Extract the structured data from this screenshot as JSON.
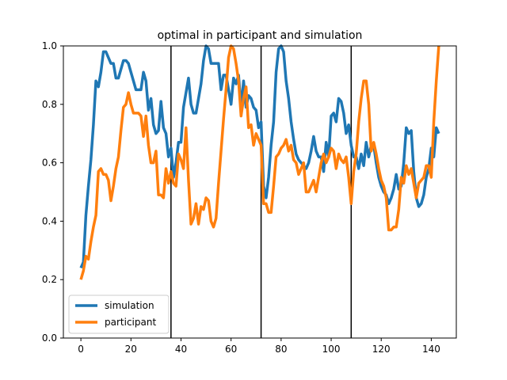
{
  "chart_data": {
    "type": "line",
    "title": "optimal in participant and simulation",
    "xlabel": "",
    "ylabel": "",
    "xlim": [
      -7,
      150
    ],
    "ylim": [
      0.0,
      1.0
    ],
    "xticks": [
      0,
      20,
      40,
      60,
      80,
      100,
      120,
      140
    ],
    "yticks": [
      0.0,
      0.2,
      0.4,
      0.6,
      0.8,
      1.0
    ],
    "xtick_labels": [
      "0",
      "20",
      "40",
      "60",
      "80",
      "100",
      "120",
      "140"
    ],
    "ytick_labels": [
      "0.0",
      "0.2",
      "0.4",
      "0.6",
      "0.8",
      "1.0"
    ],
    "vlines": [
      36,
      72,
      108
    ],
    "grid": false,
    "legend": {
      "placement": "lower-left"
    },
    "series": [
      {
        "name": "simulation",
        "color": "#1f77b4",
        "points": [
          [
            0,
            0.24
          ],
          [
            1,
            0.26
          ],
          [
            2,
            0.42
          ],
          [
            3,
            0.52
          ],
          [
            4,
            0.61
          ],
          [
            5,
            0.73
          ],
          [
            6,
            0.88
          ],
          [
            7,
            0.86
          ],
          [
            8,
            0.91
          ],
          [
            9,
            0.98
          ],
          [
            10,
            0.98
          ],
          [
            11,
            0.96
          ],
          [
            12,
            0.94
          ],
          [
            13,
            0.94
          ],
          [
            14,
            0.89
          ],
          [
            15,
            0.89
          ],
          [
            16,
            0.92
          ],
          [
            17,
            0.95
          ],
          [
            18,
            0.95
          ],
          [
            19,
            0.94
          ],
          [
            20,
            0.91
          ],
          [
            21,
            0.88
          ],
          [
            22,
            0.85
          ],
          [
            23,
            0.85
          ],
          [
            24,
            0.85
          ],
          [
            25,
            0.91
          ],
          [
            26,
            0.88
          ],
          [
            27,
            0.78
          ],
          [
            28,
            0.82
          ],
          [
            29,
            0.73
          ],
          [
            30,
            0.7
          ],
          [
            31,
            0.71
          ],
          [
            32,
            0.81
          ],
          [
            33,
            0.72
          ],
          [
            34,
            0.7
          ],
          [
            35,
            0.62
          ],
          [
            36,
            0.65
          ],
          [
            37,
            0.55
          ],
          [
            38,
            0.6
          ],
          [
            39,
            0.67
          ],
          [
            40,
            0.67
          ],
          [
            41,
            0.79
          ],
          [
            42,
            0.84
          ],
          [
            43,
            0.89
          ],
          [
            44,
            0.8
          ],
          [
            45,
            0.77
          ],
          [
            46,
            0.77
          ],
          [
            47,
            0.82
          ],
          [
            48,
            0.87
          ],
          [
            49,
            0.95
          ],
          [
            50,
            1.0
          ],
          [
            51,
            0.99
          ],
          [
            52,
            0.94
          ],
          [
            53,
            0.94
          ],
          [
            54,
            0.94
          ],
          [
            55,
            0.94
          ],
          [
            56,
            0.85
          ],
          [
            57,
            0.9
          ],
          [
            58,
            0.9
          ],
          [
            59,
            0.85
          ],
          [
            60,
            0.8
          ],
          [
            61,
            0.89
          ],
          [
            62,
            0.87
          ],
          [
            63,
            0.9
          ],
          [
            64,
            0.79
          ],
          [
            65,
            0.88
          ],
          [
            66,
            0.79
          ],
          [
            67,
            0.83
          ],
          [
            68,
            0.82
          ],
          [
            69,
            0.79
          ],
          [
            70,
            0.78
          ],
          [
            71,
            0.72
          ],
          [
            72,
            0.74
          ],
          [
            73,
            0.52
          ],
          [
            74,
            0.48
          ],
          [
            75,
            0.55
          ],
          [
            76,
            0.66
          ],
          [
            77,
            0.74
          ],
          [
            78,
            0.91
          ],
          [
            79,
            0.99
          ],
          [
            80,
            1.0
          ],
          [
            81,
            0.98
          ],
          [
            82,
            0.88
          ],
          [
            83,
            0.82
          ],
          [
            84,
            0.74
          ],
          [
            85,
            0.68
          ],
          [
            86,
            0.63
          ],
          [
            87,
            0.61
          ],
          [
            88,
            0.6
          ],
          [
            89,
            0.59
          ],
          [
            90,
            0.58
          ],
          [
            91,
            0.6
          ],
          [
            92,
            0.64
          ],
          [
            93,
            0.69
          ],
          [
            94,
            0.64
          ],
          [
            95,
            0.62
          ],
          [
            96,
            0.62
          ],
          [
            97,
            0.57
          ],
          [
            98,
            0.67
          ],
          [
            99,
            0.62
          ],
          [
            100,
            0.76
          ],
          [
            101,
            0.77
          ],
          [
            102,
            0.74
          ],
          [
            103,
            0.82
          ],
          [
            104,
            0.81
          ],
          [
            105,
            0.77
          ],
          [
            106,
            0.7
          ],
          [
            107,
            0.73
          ],
          [
            108,
            0.66
          ],
          [
            109,
            0.62
          ],
          [
            110,
            0.62
          ],
          [
            111,
            0.58
          ],
          [
            112,
            0.63
          ],
          [
            113,
            0.59
          ],
          [
            114,
            0.67
          ],
          [
            115,
            0.62
          ],
          [
            116,
            0.66
          ],
          [
            117,
            0.66
          ],
          [
            118,
            0.6
          ],
          [
            119,
            0.55
          ],
          [
            120,
            0.52
          ],
          [
            121,
            0.5
          ],
          [
            122,
            0.49
          ],
          [
            123,
            0.46
          ],
          [
            124,
            0.48
          ],
          [
            125,
            0.51
          ],
          [
            126,
            0.56
          ],
          [
            127,
            0.51
          ],
          [
            128,
            0.52
          ],
          [
            129,
            0.6
          ],
          [
            130,
            0.72
          ],
          [
            131,
            0.7
          ],
          [
            132,
            0.71
          ],
          [
            133,
            0.57
          ],
          [
            134,
            0.48
          ],
          [
            135,
            0.45
          ],
          [
            136,
            0.46
          ],
          [
            137,
            0.49
          ],
          [
            138,
            0.55
          ],
          [
            139,
            0.58
          ],
          [
            140,
            0.65
          ],
          [
            141,
            0.62
          ],
          [
            142,
            0.72
          ],
          [
            143,
            0.7
          ]
        ]
      },
      {
        "name": "participant",
        "color": "#ff7f0e",
        "points": [
          [
            0,
            0.2
          ],
          [
            1,
            0.23
          ],
          [
            2,
            0.28
          ],
          [
            3,
            0.27
          ],
          [
            4,
            0.33
          ],
          [
            5,
            0.38
          ],
          [
            6,
            0.42
          ],
          [
            7,
            0.57
          ],
          [
            8,
            0.58
          ],
          [
            9,
            0.56
          ],
          [
            10,
            0.56
          ],
          [
            11,
            0.54
          ],
          [
            12,
            0.47
          ],
          [
            13,
            0.52
          ],
          [
            14,
            0.58
          ],
          [
            15,
            0.62
          ],
          [
            16,
            0.71
          ],
          [
            17,
            0.79
          ],
          [
            18,
            0.8
          ],
          [
            19,
            0.84
          ],
          [
            20,
            0.8
          ],
          [
            21,
            0.77
          ],
          [
            22,
            0.77
          ],
          [
            23,
            0.77
          ],
          [
            24,
            0.76
          ],
          [
            25,
            0.69
          ],
          [
            26,
            0.76
          ],
          [
            27,
            0.66
          ],
          [
            28,
            0.6
          ],
          [
            29,
            0.6
          ],
          [
            30,
            0.64
          ],
          [
            31,
            0.49
          ],
          [
            32,
            0.49
          ],
          [
            33,
            0.48
          ],
          [
            34,
            0.58
          ],
          [
            35,
            0.53
          ],
          [
            36,
            0.57
          ],
          [
            37,
            0.53
          ],
          [
            38,
            0.52
          ],
          [
            39,
            0.63
          ],
          [
            40,
            0.61
          ],
          [
            41,
            0.58
          ],
          [
            42,
            0.72
          ],
          [
            43,
            0.54
          ],
          [
            44,
            0.39
          ],
          [
            45,
            0.41
          ],
          [
            46,
            0.46
          ],
          [
            47,
            0.39
          ],
          [
            48,
            0.45
          ],
          [
            49,
            0.44
          ],
          [
            50,
            0.48
          ],
          [
            51,
            0.47
          ],
          [
            52,
            0.4
          ],
          [
            53,
            0.38
          ],
          [
            54,
            0.41
          ],
          [
            55,
            0.53
          ],
          [
            56,
            0.64
          ],
          [
            57,
            0.75
          ],
          [
            58,
            0.85
          ],
          [
            59,
            0.96
          ],
          [
            60,
            1.0
          ],
          [
            61,
            0.99
          ],
          [
            62,
            0.94
          ],
          [
            63,
            0.88
          ],
          [
            64,
            0.76
          ],
          [
            65,
            0.82
          ],
          [
            66,
            0.86
          ],
          [
            67,
            0.72
          ],
          [
            68,
            0.73
          ],
          [
            69,
            0.66
          ],
          [
            70,
            0.7
          ],
          [
            71,
            0.68
          ],
          [
            72,
            0.66
          ],
          [
            73,
            0.46
          ],
          [
            74,
            0.46
          ],
          [
            75,
            0.43
          ],
          [
            76,
            0.43
          ],
          [
            77,
            0.52
          ],
          [
            78,
            0.62
          ],
          [
            79,
            0.63
          ],
          [
            80,
            0.65
          ],
          [
            81,
            0.66
          ],
          [
            82,
            0.68
          ],
          [
            83,
            0.64
          ],
          [
            84,
            0.66
          ],
          [
            85,
            0.61
          ],
          [
            86,
            0.6
          ],
          [
            87,
            0.56
          ],
          [
            88,
            0.58
          ],
          [
            89,
            0.6
          ],
          [
            90,
            0.5
          ],
          [
            91,
            0.5
          ],
          [
            92,
            0.52
          ],
          [
            93,
            0.54
          ],
          [
            94,
            0.5
          ],
          [
            95,
            0.55
          ],
          [
            96,
            0.6
          ],
          [
            97,
            0.63
          ],
          [
            98,
            0.6
          ],
          [
            99,
            0.62
          ],
          [
            100,
            0.65
          ],
          [
            101,
            0.64
          ],
          [
            102,
            0.58
          ],
          [
            103,
            0.63
          ],
          [
            104,
            0.61
          ],
          [
            105,
            0.6
          ],
          [
            106,
            0.62
          ],
          [
            107,
            0.55
          ],
          [
            108,
            0.46
          ],
          [
            109,
            0.57
          ],
          [
            110,
            0.63
          ],
          [
            111,
            0.74
          ],
          [
            112,
            0.82
          ],
          [
            113,
            0.88
          ],
          [
            114,
            0.88
          ],
          [
            115,
            0.8
          ],
          [
            116,
            0.64
          ],
          [
            117,
            0.67
          ],
          [
            118,
            0.63
          ],
          [
            119,
            0.58
          ],
          [
            120,
            0.54
          ],
          [
            121,
            0.52
          ],
          [
            122,
            0.48
          ],
          [
            123,
            0.37
          ],
          [
            124,
            0.37
          ],
          [
            125,
            0.38
          ],
          [
            126,
            0.38
          ],
          [
            127,
            0.44
          ],
          [
            128,
            0.55
          ],
          [
            129,
            0.53
          ],
          [
            130,
            0.59
          ],
          [
            131,
            0.56
          ],
          [
            132,
            0.58
          ],
          [
            133,
            0.53
          ],
          [
            134,
            0.48
          ],
          [
            135,
            0.53
          ],
          [
            136,
            0.54
          ],
          [
            137,
            0.55
          ],
          [
            138,
            0.59
          ],
          [
            139,
            0.59
          ],
          [
            140,
            0.55
          ],
          [
            141,
            0.74
          ],
          [
            142,
            0.88
          ],
          [
            143,
            1.0
          ]
        ]
      }
    ]
  }
}
